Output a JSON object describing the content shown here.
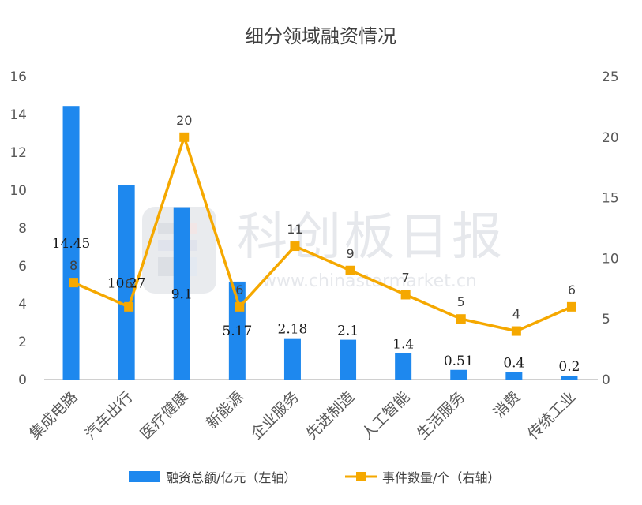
{
  "chart_data": {
    "type": "bar+line",
    "title": "细分领域融资情况",
    "categories": [
      "集成电路",
      "汽车出行",
      "医疗健康",
      "新能源",
      "企业服务",
      "先进制造",
      "人工智能",
      "生活服务",
      "消费",
      "传统工业"
    ],
    "series": [
      {
        "name": "融资总额/亿元（左轴）",
        "type": "bar",
        "axis": "left",
        "color": "#1e88ee",
        "values": [
          14.45,
          10.27,
          9.1,
          5.17,
          2.18,
          2.1,
          1.4,
          0.51,
          0.4,
          0.2
        ],
        "labels": [
          "14.45",
          "10.27",
          "9.1",
          "5.17",
          "2.18",
          "2.1",
          "1.4",
          "0.51",
          "0.4",
          "0.2"
        ]
      },
      {
        "name": "事件数量/个（右轴）",
        "type": "line",
        "axis": "right",
        "color": "#f5a800",
        "values": [
          8,
          6,
          20,
          6,
          11,
          9,
          7,
          5,
          4,
          6
        ],
        "labels": [
          "8",
          "6",
          "20",
          "6",
          "11",
          "9",
          "7",
          "5",
          "4",
          "6"
        ]
      }
    ],
    "y_left": {
      "min": 0,
      "max": 16,
      "ticks": [
        "0",
        "2",
        "4",
        "6",
        "8",
        "10",
        "12",
        "14",
        "16"
      ]
    },
    "y_right": {
      "min": 0,
      "max": 25,
      "ticks": [
        "0",
        "5",
        "10",
        "15",
        "20",
        "25"
      ]
    },
    "legend_position": "bottom",
    "grid": false
  },
  "watermark": {
    "text": "科创板日报",
    "url": "www.chinastarmarket.cn",
    "color": "#e4e6ea"
  }
}
